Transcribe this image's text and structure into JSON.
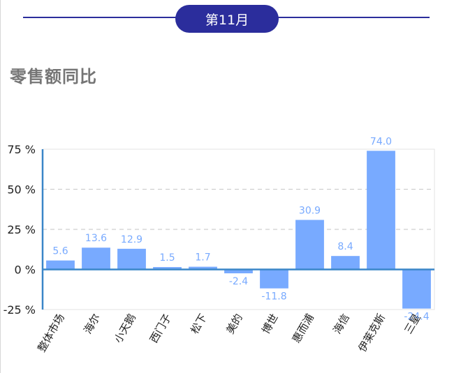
{
  "header": {
    "month_label": "第11月"
  },
  "section": {
    "title": "零售额同比"
  },
  "colors": {
    "accent": "#2b2d9c",
    "bar": "#78aaff",
    "value_label": "#78aaff",
    "axis": "#3a86c8",
    "zero_line": "#3a86c8",
    "grid": "#cfcfcf"
  },
  "chart_data": {
    "type": "bar",
    "title": "零售额同比",
    "xlabel": "",
    "ylabel": "",
    "categories": [
      "整体市场",
      "海尔",
      "小天鹅",
      "西门子",
      "松下",
      "美的",
      "博世",
      "惠而浦",
      "海信",
      "伊莱克斯",
      "三星"
    ],
    "values": [
      5.6,
      13.6,
      12.9,
      1.5,
      1.7,
      -2.4,
      -11.8,
      30.9,
      8.4,
      74.0,
      -24.4
    ],
    "value_labels": [
      "5.6",
      "13.6",
      "12.9",
      "1.5",
      "1.7",
      "-2.4",
      "-11.8",
      "30.9",
      "8.4",
      "74.0",
      "-24.4"
    ],
    "ylim": [
      -25,
      75
    ],
    "yticks": [
      -25,
      0,
      25,
      50,
      75
    ],
    "ytick_labels": [
      "-25 %",
      "0 %",
      "25 %",
      "50 %",
      "75 %"
    ],
    "grid": true,
    "legend": "none"
  }
}
